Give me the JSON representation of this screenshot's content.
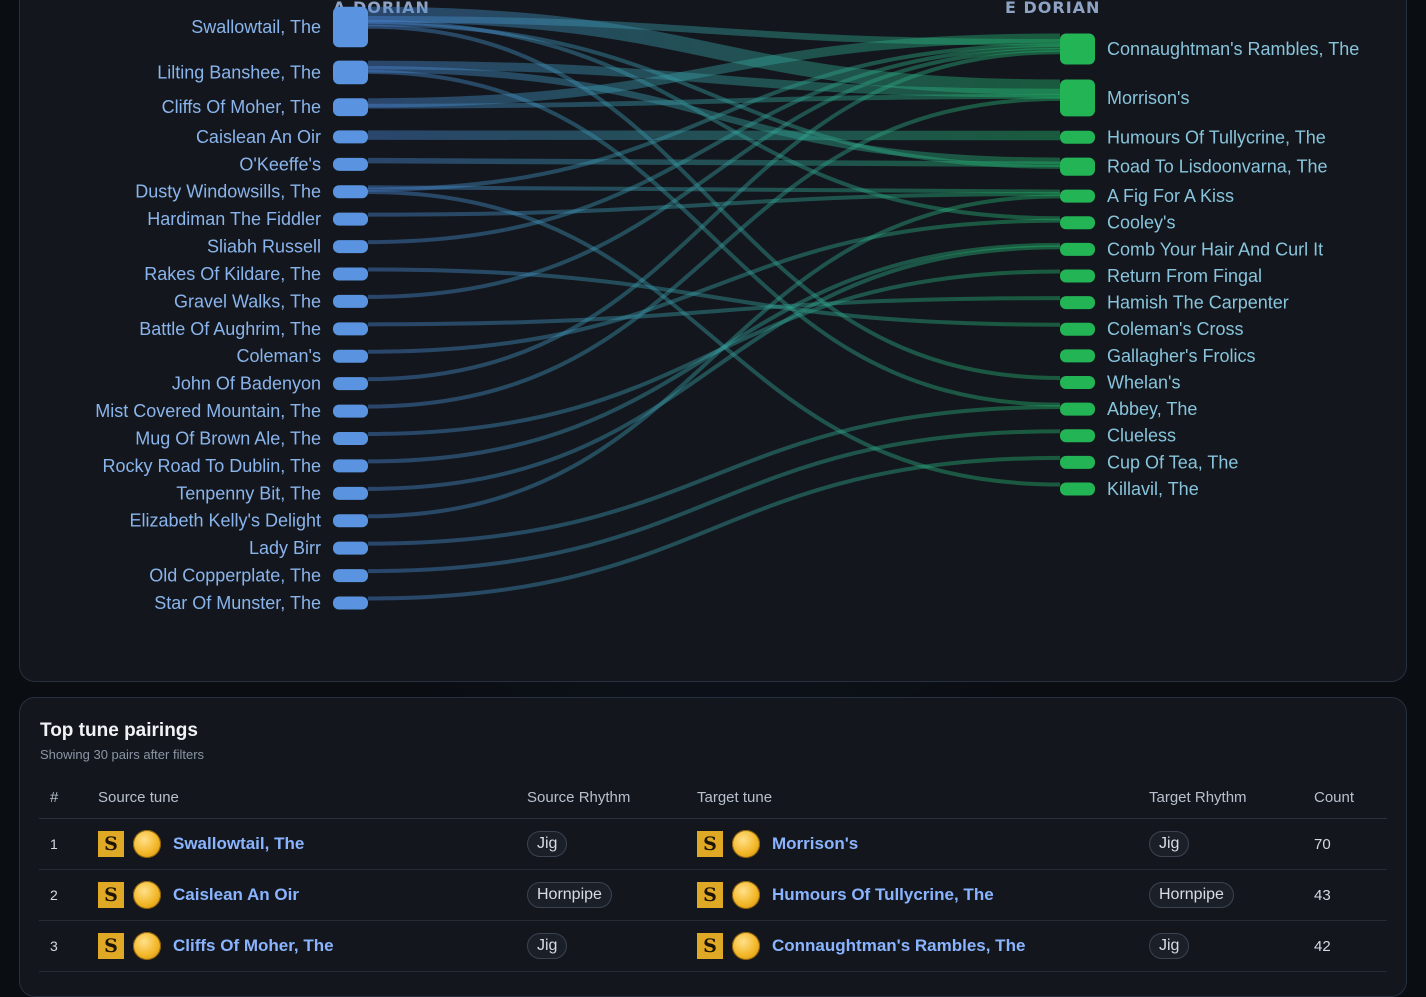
{
  "sankey": {
    "source_heading": "A DORIAN",
    "target_heading": "E DORIAN",
    "source_color": "#5a94e0",
    "target_color": "#22b455",
    "sources": [
      "Swallowtail, The",
      "Lilting Banshee, The",
      "Cliffs Of Moher, The",
      "Caislean An Oir",
      "O'Keeffe's",
      "Dusty Windowsills, The",
      "Hardiman The Fiddler",
      "Sliabh Russell",
      "Rakes Of Kildare, The",
      "Gravel Walks, The",
      "Battle Of Aughrim, The",
      "Coleman's",
      "John Of Badenyon",
      "Mist Covered Mountain, The",
      "Mug Of Brown Ale, The",
      "Rocky Road To Dublin, The",
      "Tenpenny Bit, The",
      "Elizabeth Kelly's Delight",
      "Lady Birr",
      "Old Copperplate, The",
      "Star Of Munster, The"
    ],
    "targets": [
      "Connaughtman's Rambles, The",
      "Morrison's",
      "Humours Of Tullycrine, The",
      "Road To Lisdoonvarna, The",
      "A Fig For A Kiss",
      "Cooley's",
      "Comb Your Hair And Curl It",
      "Return From Fingal",
      "Hamish The Carpenter",
      "Coleman's Cross",
      "Gallagher's Frolics",
      "Whelan's",
      "Abbey, The",
      "Clueless",
      "Cup Of Tea, The",
      "Killavil, The"
    ],
    "links": [
      {
        "source": 0,
        "target": 1,
        "count": 70
      },
      {
        "source": 3,
        "target": 2,
        "count": 43
      },
      {
        "source": 2,
        "target": 0,
        "count": 42
      },
      {
        "source": 1,
        "target": 1,
        "count": 40
      },
      {
        "source": 0,
        "target": 0,
        "count": 30
      },
      {
        "source": 1,
        "target": 3,
        "count": 30
      },
      {
        "source": 4,
        "target": 3,
        "count": 25
      },
      {
        "source": 2,
        "target": 1,
        "count": 22
      },
      {
        "source": 0,
        "target": 5,
        "count": 18
      },
      {
        "source": 5,
        "target": 4,
        "count": 16
      },
      {
        "source": 0,
        "target": 3,
        "count": 15
      },
      {
        "source": 1,
        "target": 12,
        "count": 14
      },
      {
        "source": 5,
        "target": 0,
        "count": 14
      },
      {
        "source": 6,
        "target": 4,
        "count": 13
      },
      {
        "source": 5,
        "target": 15,
        "count": 13
      },
      {
        "source": 7,
        "target": 0,
        "count": 12
      },
      {
        "source": 0,
        "target": 11,
        "count": 12
      },
      {
        "source": 8,
        "target": 9,
        "count": 12
      },
      {
        "source": 9,
        "target": 0,
        "count": 11
      },
      {
        "source": 10,
        "target": 8,
        "count": 11
      },
      {
        "source": 11,
        "target": 5,
        "count": 11
      },
      {
        "source": 12,
        "target": 0,
        "count": 10
      },
      {
        "source": 13,
        "target": 1,
        "count": 10
      },
      {
        "source": 14,
        "target": 7,
        "count": 10
      },
      {
        "source": 15,
        "target": 6,
        "count": 10
      },
      {
        "source": 16,
        "target": 6,
        "count": 9
      },
      {
        "source": 17,
        "target": 4,
        "count": 9
      },
      {
        "source": 18,
        "target": 12,
        "count": 9
      },
      {
        "source": 19,
        "target": 13,
        "count": 8
      },
      {
        "source": 20,
        "target": 14,
        "count": 8
      }
    ]
  },
  "pairs": {
    "title": "Top tune pairings",
    "subtitle": "Showing 30 pairs after filters",
    "columns": {
      "rank": "#",
      "source_tune": "Source tune",
      "source_rhythm": "Source Rhythm",
      "target_tune": "Target tune",
      "target_rhythm": "Target Rhythm",
      "count": "Count"
    },
    "badge_letter": "S",
    "rows": [
      {
        "rank": "1",
        "source": "Swallowtail, The",
        "source_rhythm": "Jig",
        "target": "Morrison's",
        "target_rhythm": "Jig",
        "count": "70"
      },
      {
        "rank": "2",
        "source": "Caislean An Oir",
        "source_rhythm": "Hornpipe",
        "target": "Humours Of Tullycrine, The",
        "target_rhythm": "Hornpipe",
        "count": "43"
      },
      {
        "rank": "3",
        "source": "Cliffs Of Moher, The",
        "source_rhythm": "Jig",
        "target": "Connaughtman's Rambles, The",
        "target_rhythm": "Jig",
        "count": "42"
      }
    ]
  }
}
